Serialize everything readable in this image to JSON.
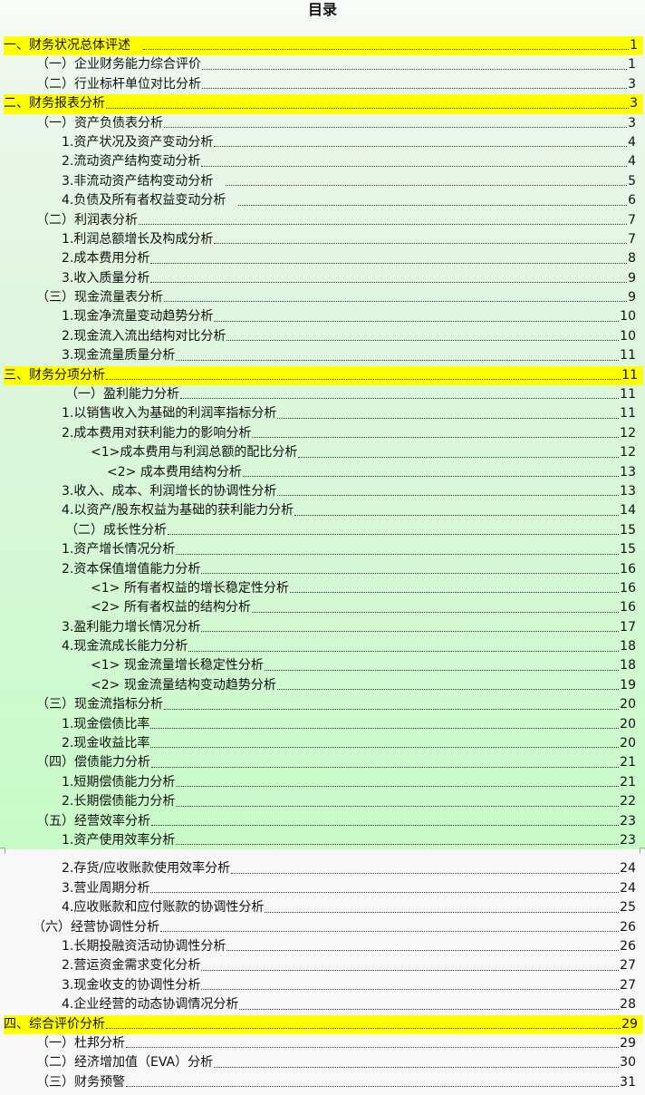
{
  "title": "目录",
  "colors": {
    "section_highlight": "#ffff00",
    "upper_background": "#c8fbc8",
    "lower_background": "#f8f8f8"
  },
  "entries_top": [
    {
      "level": "sec",
      "text": "一、财务状况总体评述",
      "page": "1",
      "gap": true
    },
    {
      "level": "sub",
      "text": "（一）企业财务能力综合评价",
      "page": "1"
    },
    {
      "level": "sub",
      "text": "（二）行业标杆单位对比分析",
      "page": "3"
    },
    {
      "level": "sec",
      "text": "二、财务报表分析",
      "page": "3"
    },
    {
      "level": "sub",
      "text": "（一）资产负债表分析",
      "page": "3"
    },
    {
      "level": "item",
      "text": "1.资产状况及资产变动分析",
      "page": "4"
    },
    {
      "level": "item",
      "text": "2.流动资产结构变动分析",
      "page": "4"
    },
    {
      "level": "item",
      "text": "3.非流动资产结构变动分析",
      "page": "5",
      "gap": true
    },
    {
      "level": "item",
      "text": "4.负债及所有者权益变动分析",
      "page": "6",
      "gap": true
    },
    {
      "level": "sub",
      "text": "（二）利润表分析",
      "page": "7"
    },
    {
      "level": "item",
      "text": "1.利润总额增长及构成分析",
      "page": "7"
    },
    {
      "level": "item",
      "text": "2.成本费用分析",
      "page": "8"
    },
    {
      "level": "item",
      "text": "3.收入质量分析",
      "page": "9"
    },
    {
      "level": "sub",
      "text": "（三）现金流量表分析",
      "page": "9"
    },
    {
      "level": "item",
      "text": "1.现金净流量变动趋势分析",
      "page": "10"
    },
    {
      "level": "item",
      "text": "2.现金流入流出结构对比分析",
      "page": "10"
    },
    {
      "level": "item",
      "text": "3.现金流量质量分析",
      "page": "11"
    },
    {
      "level": "sec",
      "text": "三、财务分项分析",
      "page": "11"
    },
    {
      "level": "subw",
      "text": "（一）盈利能力分析",
      "page": "11"
    },
    {
      "level": "item",
      "text": "1.以销售收入为基础的利润率指标分析",
      "page": "11"
    },
    {
      "level": "item",
      "text": "2.成本费用对获利能力的影响分析",
      "page": "12"
    },
    {
      "level": "subitem",
      "text": "<1>成本费用与利润总额的配比分析",
      "page": "12"
    },
    {
      "level": "subitem2",
      "text": "<2> 成本费用结构分析",
      "page": "13"
    },
    {
      "level": "item",
      "text": "3.收入、成本、利润增长的协调性分析",
      "page": "13"
    },
    {
      "level": "item",
      "text": "4.以资产/股东权益为基础的获利能力分析",
      "page": "14"
    },
    {
      "level": "subw",
      "text": "（二）成长性分析",
      "page": "15"
    },
    {
      "level": "item",
      "text": "1.资产增长情况分析",
      "page": "15"
    },
    {
      "level": "item",
      "text": "2.资本保值增值能力分析",
      "page": "16"
    },
    {
      "level": "subitem",
      "text": "<1> 所有者权益的增长稳定性分析",
      "page": "16"
    },
    {
      "level": "subitem",
      "text": "<2> 所有者权益的结构分析",
      "page": "16"
    },
    {
      "level": "item",
      "text": "3.盈利能力增长情况分析",
      "page": "17"
    },
    {
      "level": "item",
      "text": "4.现金流成长能力分析",
      "page": "18"
    },
    {
      "level": "subitem",
      "text": "<1> 现金流量增长稳定性分析",
      "page": "18"
    },
    {
      "level": "subitem",
      "text": "<2> 现金流量结构变动趋势分析",
      "page": "19"
    },
    {
      "level": "sub",
      "text": "（三）现金流指标分析",
      "page": "20"
    },
    {
      "level": "item",
      "text": "1.现金偿债比率",
      "page": "20"
    },
    {
      "level": "item",
      "text": "2.现金收益比率",
      "page": "20"
    },
    {
      "level": "sub",
      "text": "（四）偿债能力分析",
      "page": "21"
    },
    {
      "level": "item",
      "text": "1.短期偿债能力分析",
      "page": "21"
    },
    {
      "level": "item",
      "text": "2.长期偿债能力分析",
      "page": "22"
    },
    {
      "level": "sub",
      "text": "（五）经营效率分析",
      "page": "23"
    },
    {
      "level": "item",
      "text": "1.资产使用效率分析",
      "page": "23"
    }
  ],
  "entries_bottom": [
    {
      "level": "item",
      "text": "2.存货/应收账款使用效率分析",
      "page": "24"
    },
    {
      "level": "item",
      "text": "3.营业周期分析",
      "page": "24"
    },
    {
      "level": "item",
      "text": "4.应收账款和应付账款的协调性分析",
      "page": "25"
    },
    {
      "level": "sub6",
      "text": "（六）经营协调性分析",
      "page": "26"
    },
    {
      "level": "item",
      "text": "1.长期投融资活动协调性分析",
      "page": "26"
    },
    {
      "level": "item",
      "text": "2.营运资金需求变化分析",
      "page": "27"
    },
    {
      "level": "item",
      "text": "3.现金收支的协调性分析",
      "page": "27"
    },
    {
      "level": "item",
      "text": "4.企业经营的动态协调情况分析",
      "page": "28"
    },
    {
      "level": "sec",
      "text": "四、综合评价分析",
      "page": "29"
    },
    {
      "level": "sub",
      "text": "（一）杜邦分析",
      "page": "29"
    },
    {
      "level": "sub",
      "text": "（二）经济增加值（EVA）分析",
      "page": "30"
    },
    {
      "level": "sub",
      "text": "（三）财务预警",
      "page": "31"
    }
  ]
}
